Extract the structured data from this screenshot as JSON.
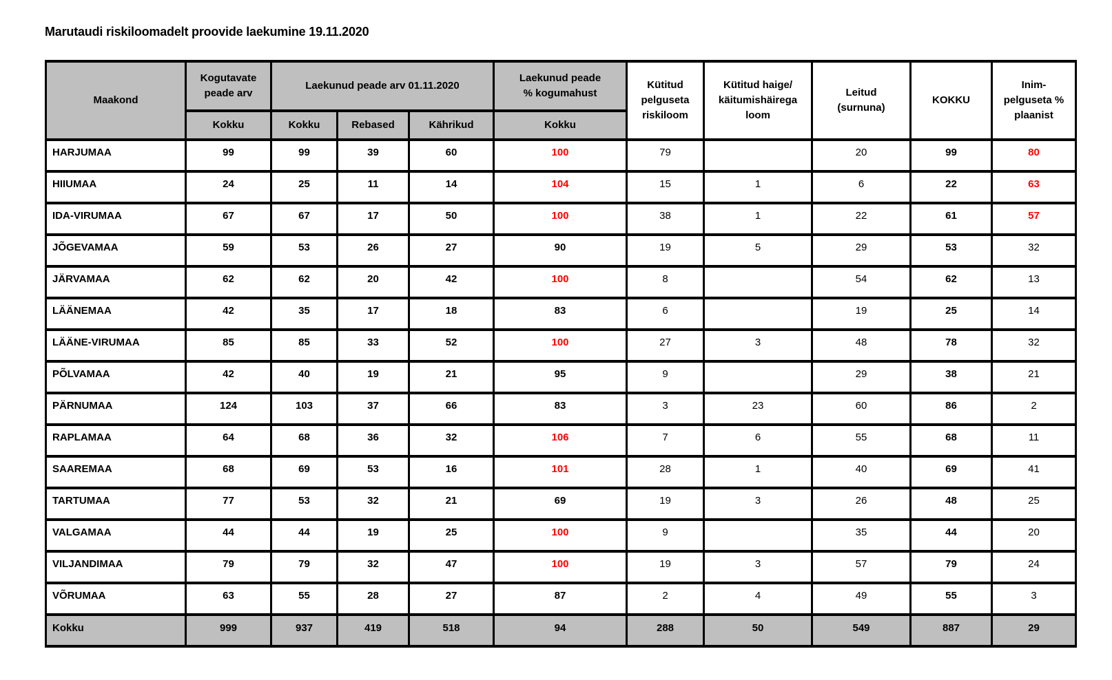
{
  "title": "Marutaudi riskiloomadelt proovide laekumine 19.11.2020",
  "colors": {
    "accent_red": "#FF0000",
    "header_gray": "#BFBFBF",
    "border": "#000000"
  },
  "table": {
    "header": {
      "maakond": "Maakond",
      "kogutavate": "Kogutavate\npeade arv",
      "laekunud_arv": "Laekunud peade arv 01.11.2020",
      "laekunud_pct": "Laekunud peade\n%  kogumahust",
      "sub": [
        "Kokku",
        "Kokku",
        "Rebased",
        "Kährikud",
        "Kokku"
      ],
      "kytitud_pelguseta": "Kütitud\npelguseta\nriskiloom",
      "kytitud_haige": "Kütitud haige/\nkäitumishäirega\nloom",
      "leitud": "Leitud\n(surnuna)",
      "kokku_caps": "KOKKU",
      "inim": "Inim-\npelguseta %\nplaanist"
    },
    "rows": [
      {
        "maakond": "HARJUMAA",
        "values": [
          "99",
          "99",
          "39",
          "60",
          "100",
          "79",
          "",
          "20",
          "99",
          "80"
        ],
        "red": [
          4,
          9
        ]
      },
      {
        "maakond": "HIIUMAA",
        "values": [
          "24",
          "25",
          "11",
          "14",
          "104",
          "15",
          "1",
          "6",
          "22",
          "63"
        ],
        "red": [
          4,
          9
        ]
      },
      {
        "maakond": "IDA-VIRUMAA",
        "values": [
          "67",
          "67",
          "17",
          "50",
          "100",
          "38",
          "1",
          "22",
          "61",
          "57"
        ],
        "red": [
          4,
          9
        ]
      },
      {
        "maakond": "JÕGEVAMAA",
        "values": [
          "59",
          "53",
          "26",
          "27",
          "90",
          "19",
          "5",
          "29",
          "53",
          "32"
        ],
        "red": []
      },
      {
        "maakond": "JÄRVAMAA",
        "values": [
          "62",
          "62",
          "20",
          "42",
          "100",
          "8",
          "",
          "54",
          "62",
          "13"
        ],
        "red": [
          4
        ]
      },
      {
        "maakond": "LÄÄNEMAA",
        "values": [
          "42",
          "35",
          "17",
          "18",
          "83",
          "6",
          "",
          "19",
          "25",
          "14"
        ],
        "red": []
      },
      {
        "maakond": "LÄÄNE-VIRUMAA",
        "values": [
          "85",
          "85",
          "33",
          "52",
          "100",
          "27",
          "3",
          "48",
          "78",
          "32"
        ],
        "red": [
          4
        ]
      },
      {
        "maakond": "PÕLVAMAA",
        "values": [
          "42",
          "40",
          "19",
          "21",
          "95",
          "9",
          "",
          "29",
          "38",
          "21"
        ],
        "red": []
      },
      {
        "maakond": "PÄRNUMAA",
        "values": [
          "124",
          "103",
          "37",
          "66",
          "83",
          "3",
          "23",
          "60",
          "86",
          "2"
        ],
        "red": []
      },
      {
        "maakond": "RAPLAMAA",
        "values": [
          "64",
          "68",
          "36",
          "32",
          "106",
          "7",
          "6",
          "55",
          "68",
          "11"
        ],
        "red": [
          4
        ]
      },
      {
        "maakond": "SAAREMAA",
        "values": [
          "68",
          "69",
          "53",
          "16",
          "101",
          "28",
          "1",
          "40",
          "69",
          "41"
        ],
        "red": [
          4
        ]
      },
      {
        "maakond": "TARTUMAA",
        "values": [
          "77",
          "53",
          "32",
          "21",
          "69",
          "19",
          "3",
          "26",
          "48",
          "25"
        ],
        "red": []
      },
      {
        "maakond": "VALGAMAA",
        "values": [
          "44",
          "44",
          "19",
          "25",
          "100",
          "9",
          "",
          "35",
          "44",
          "20"
        ],
        "red": [
          4
        ]
      },
      {
        "maakond": "VILJANDIMAA",
        "values": [
          "79",
          "79",
          "32",
          "47",
          "100",
          "19",
          "3",
          "57",
          "79",
          "24"
        ],
        "red": [
          4
        ]
      },
      {
        "maakond": "VÕRUMAA",
        "values": [
          "63",
          "55",
          "28",
          "27",
          "87",
          "2",
          "4",
          "49",
          "55",
          "3"
        ],
        "red": []
      }
    ],
    "footer": {
      "label": "Kokku",
      "values": [
        "999",
        "937",
        "419",
        "518",
        "94",
        "288",
        "50",
        "549",
        "887",
        "29"
      ]
    }
  }
}
